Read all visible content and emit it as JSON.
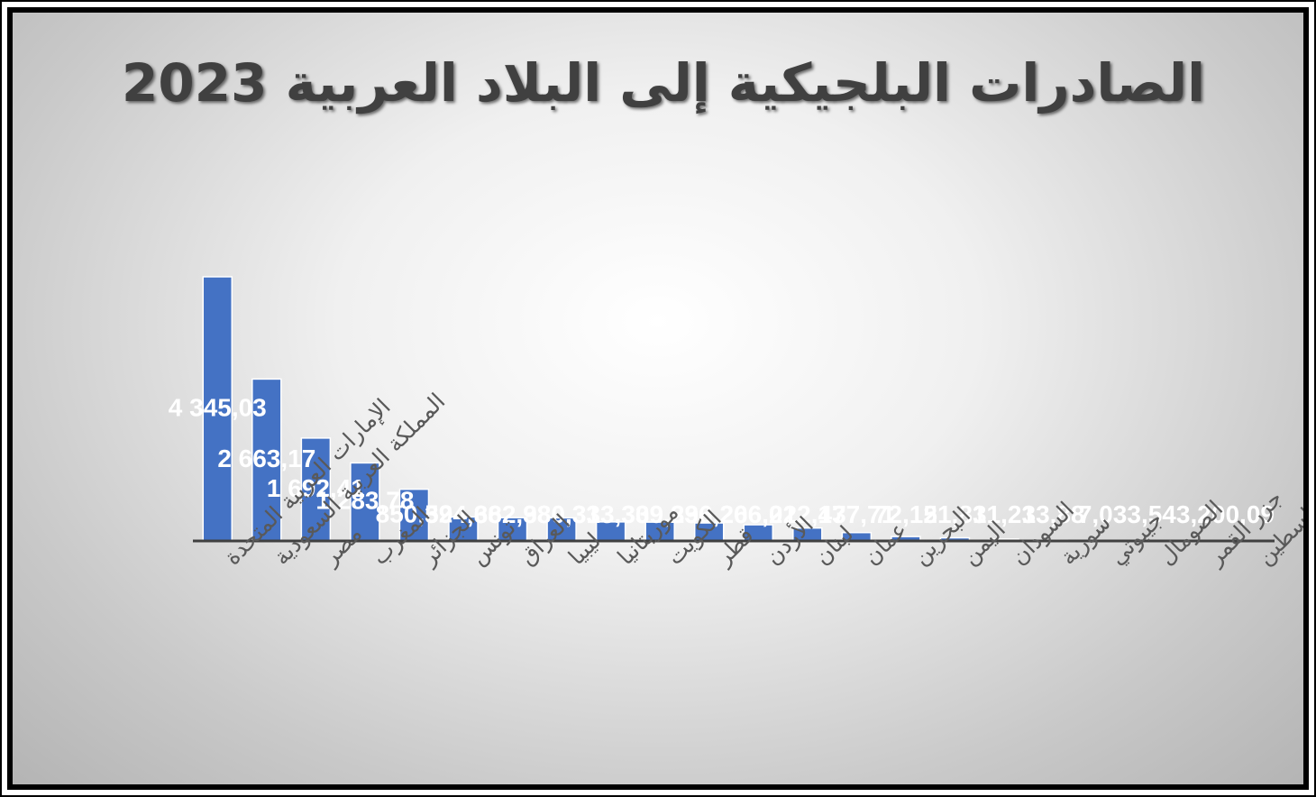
{
  "chart_data": {
    "type": "bar",
    "title": "الصادرات البلجيكية إلى البلاد العربية 2023",
    "categories": [
      "الإمارات العربية المتحدة",
      "المملكة العربية السعودية",
      "مصر",
      "المغرب",
      "الجزائر",
      "تونس",
      "العراق",
      "ليبيا",
      "موريتانيا",
      "الكويت",
      "قطر",
      "الأردن",
      "لبنان",
      "عمان",
      "البحرين",
      "اليمن",
      "السودان",
      "سورية",
      "جيبوتي",
      "الصومال",
      "جزر القمر",
      "فلسطين"
    ],
    "values": [
      4345.03,
      2663.17,
      1692.41,
      1283.78,
      850.52,
      394.66,
      382.98,
      380.33,
      313.33,
      309.33,
      296.2,
      266.02,
      212.47,
      137.71,
      72.12,
      51.81,
      31.23,
      13.88,
      7.03,
      3.54,
      3.2,
      0.09
    ],
    "value_labels": [
      "4 345,03",
      "2 663,17",
      "1 692,41",
      "1 283,78",
      "850,52",
      "394,66",
      "382,98",
      "380,33",
      "313,33",
      "309,33",
      "296,20",
      "266,02",
      "212,47",
      "137,71",
      "72,12",
      "51,81",
      "31,23",
      "13,88",
      "7,03",
      "3,54",
      "3,20",
      "0,09"
    ],
    "xlabel": "",
    "ylabel": "",
    "ylim": [
      0,
      4345.03
    ],
    "grid": false,
    "legend": "none",
    "colors": {
      "bar": "#4472C4",
      "axis": "#404040",
      "title": "#404040",
      "data_label": "#ffffff",
      "category_label": "#595959"
    }
  }
}
